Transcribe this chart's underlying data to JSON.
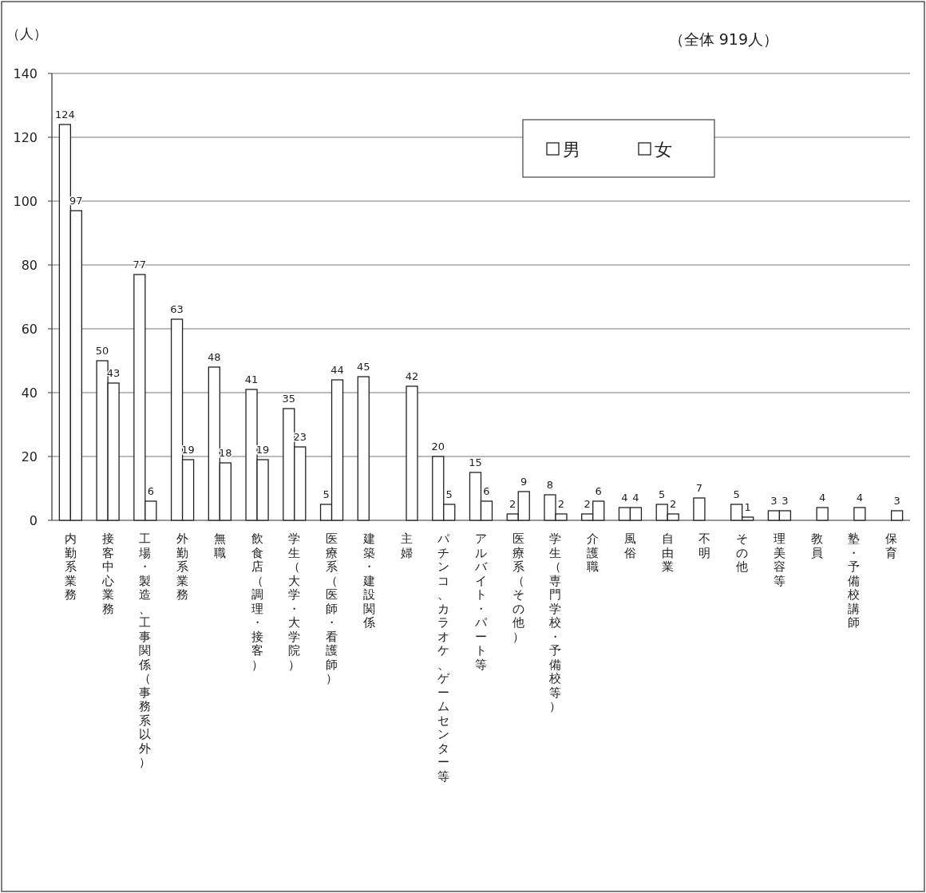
{
  "chart_data": {
    "type": "bar",
    "ylabel": "（人）",
    "annotations": [
      "（全体  919人）"
    ],
    "categories": [
      "内勤系業務",
      "接客中心業務",
      "工場・製造、工事関係（事務系以外）",
      "外勤系業務",
      "無職",
      "飲食店（調理・接客）",
      "学生（大学・大学院）",
      "医療系（医師・看護師）",
      "建築・建設関係",
      "主婦",
      "パチンコ、カラオケ、ゲームセンター等",
      "アルバイト・パート等",
      "医療系（その他）",
      "学生（専門学校・予備校等）",
      "介護職",
      "風俗",
      "自由業",
      "不明",
      "その他",
      "理美容等",
      "教員",
      "塾・予備校講師",
      "保育"
    ],
    "series": [
      {
        "name": "男",
        "color": "#ffffff",
        "values": [
          124,
          50,
          77,
          63,
          48,
          41,
          35,
          5,
          45,
          null,
          20,
          15,
          2,
          8,
          2,
          4,
          5,
          7,
          5,
          3,
          null,
          null,
          null
        ]
      },
      {
        "name": "女",
        "color": "#ffffff",
        "values": [
          97,
          43,
          6,
          19,
          18,
          19,
          23,
          44,
          null,
          42,
          5,
          6,
          9,
          2,
          6,
          4,
          2,
          null,
          1,
          3,
          4,
          4,
          3
        ]
      }
    ],
    "ylim": [
      0,
      140
    ],
    "yticks": [
      0,
      20,
      40,
      60,
      80,
      100,
      120,
      140
    ],
    "grid": "y",
    "legend": "top right",
    "data_labels": true
  }
}
